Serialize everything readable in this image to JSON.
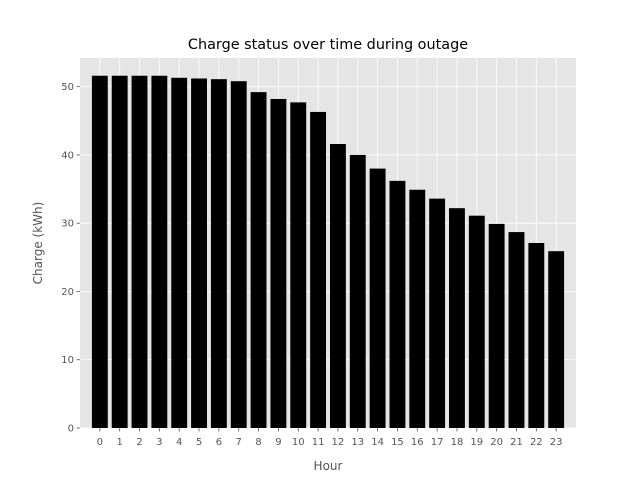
{
  "colors": {
    "plot_background": "#e5e5e5",
    "grid": "#ffffff",
    "bar": "#000000",
    "tick": "#555555",
    "text": "#555555",
    "title": "#000000"
  },
  "chart_data": {
    "type": "bar",
    "title": "Charge status over time during outage",
    "xlabel": "Hour",
    "ylabel": "Charge (kWh)",
    "categories": [
      "0",
      "1",
      "2",
      "3",
      "4",
      "5",
      "6",
      "7",
      "8",
      "9",
      "10",
      "11",
      "12",
      "13",
      "14",
      "15",
      "16",
      "17",
      "18",
      "19",
      "20",
      "21",
      "22",
      "23"
    ],
    "values": [
      51.6,
      51.6,
      51.6,
      51.6,
      51.3,
      51.2,
      51.1,
      50.8,
      49.2,
      48.2,
      47.7,
      46.3,
      41.6,
      40.0,
      38.0,
      36.2,
      34.9,
      33.6,
      32.2,
      31.1,
      29.9,
      28.7,
      27.1,
      25.9
    ],
    "ylim": [
      0,
      54.2
    ],
    "yticks": [
      "0",
      "10",
      "20",
      "30",
      "40",
      "50"
    ],
    "grid": true,
    "legend": "none"
  }
}
